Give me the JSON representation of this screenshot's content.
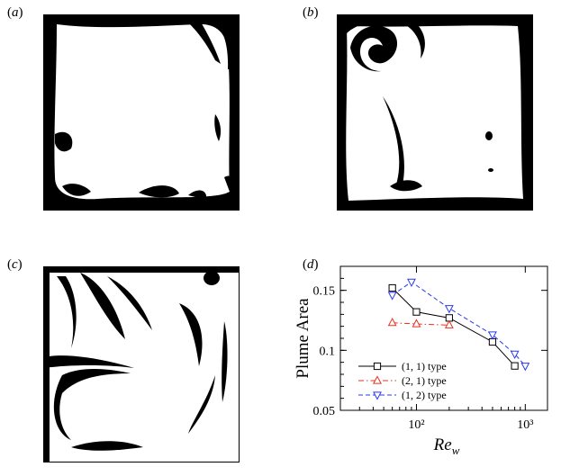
{
  "panels": [
    {
      "label_open": "(",
      "letter": "a",
      "label_close": ")"
    },
    {
      "label_open": "(",
      "letter": "b",
      "label_close": ")"
    },
    {
      "label_open": "(",
      "letter": "c",
      "label_close": ")"
    },
    {
      "label_open": "(",
      "letter": "d",
      "label_close": ")"
    }
  ],
  "chart_data": {
    "type": "line",
    "xscale": "log",
    "xlim": [
      20,
      1600
    ],
    "ylim": [
      0.05,
      0.17
    ],
    "xticks": [
      100,
      1000
    ],
    "xtick_labels": [
      "10²",
      "10³"
    ],
    "yticks": [
      0.05,
      0.1,
      0.15
    ],
    "ytick_labels": [
      "0.05",
      "0.1",
      "0.15"
    ],
    "xlabel": "Re",
    "xlabel_sub": "w",
    "ylabel": "Plume Area",
    "legend_position": "lower-left",
    "series": [
      {
        "name": "(1, 1) type",
        "color": "#000000",
        "dash": "",
        "marker": "square",
        "x": [
          60,
          100,
          200,
          500,
          800
        ],
        "y": [
          0.152,
          0.132,
          0.127,
          0.107,
          0.087
        ]
      },
      {
        "name": "(2, 1) type",
        "color": "#e8301e",
        "dash": "6 3 1.5 3",
        "marker": "triangle-up",
        "x": [
          60,
          100,
          200
        ],
        "y": [
          0.123,
          0.122,
          0.121
        ]
      },
      {
        "name": "(1, 2) type",
        "color": "#2a3be8",
        "dash": "5 3",
        "marker": "triangle-down",
        "x": [
          60,
          90,
          200,
          500,
          800,
          1000
        ],
        "y": [
          0.146,
          0.157,
          0.135,
          0.113,
          0.097,
          0.087
        ]
      }
    ]
  }
}
